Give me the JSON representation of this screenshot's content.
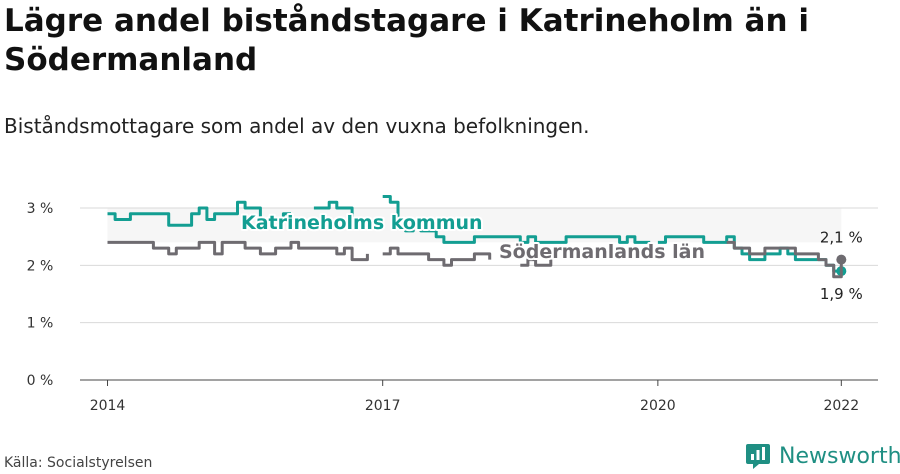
{
  "header": {
    "title": "Lägre andel biståndstagare i Katrineholm än i Södermanland",
    "subtitle": "Biståndsmottagare som andel av den vuxna befolkningen."
  },
  "footer": {
    "source": "Källa: Socialstyrelsen",
    "brand": "Newsworthy"
  },
  "colors": {
    "katrineholm": "#139e92",
    "sodermanland": "#6e6b70",
    "band": "#eeeeee",
    "grid": "#d9d9d9",
    "brand": "#1f8f83"
  },
  "chart_data": {
    "type": "line",
    "x_axis": {
      "range": [
        2013.7,
        2022.4
      ],
      "ticks": [
        2014,
        2017,
        2020,
        2022
      ],
      "tick_labels": [
        "2014",
        "2017",
        "2020",
        "2022"
      ]
    },
    "y_axis": {
      "range": [
        0,
        3
      ],
      "ticks": [
        0,
        1,
        2,
        3
      ],
      "tick_labels": [
        "0 %",
        "1 %",
        "2 %",
        "3 %"
      ]
    },
    "grid": true,
    "series": [
      {
        "name": "Katrineholms kommun",
        "label_position": "above line, 2015",
        "end_label": "1,9 %",
        "segments": [
          [
            [
              2014.0,
              2.9
            ],
            [
              2014.083,
              2.8
            ],
            [
              2014.167,
              2.8
            ],
            [
              2014.25,
              2.9
            ],
            [
              2014.333,
              2.9
            ],
            [
              2014.417,
              2.9
            ],
            [
              2014.5,
              2.9
            ],
            [
              2014.583,
              2.9
            ],
            [
              2014.667,
              2.7
            ],
            [
              2014.75,
              2.7
            ],
            [
              2014.833,
              2.7
            ],
            [
              2014.917,
              2.9
            ],
            [
              2015.0,
              3.0
            ],
            [
              2015.083,
              2.8
            ],
            [
              2015.167,
              2.9
            ],
            [
              2015.25,
              2.9
            ],
            [
              2015.333,
              2.9
            ],
            [
              2015.417,
              3.1
            ],
            [
              2015.5,
              3.0
            ],
            [
              2015.583,
              3.0
            ],
            [
              2015.667,
              2.8
            ],
            [
              2015.75,
              2.8
            ],
            [
              2015.833,
              2.8
            ],
            [
              2015.917,
              2.9
            ],
            [
              2016.0,
              2.9
            ]
          ],
          [
            [
              2016.25,
              3.0
            ],
            [
              2016.333,
              3.0
            ],
            [
              2016.417,
              3.1
            ],
            [
              2016.5,
              3.0
            ],
            [
              2016.583,
              3.0
            ],
            [
              2016.667,
              2.8
            ]
          ],
          [
            [
              2017.0,
              3.2
            ],
            [
              2017.083,
              3.1
            ],
            [
              2017.167,
              2.8
            ],
            [
              2017.25,
              2.6
            ],
            [
              2017.333,
              2.7
            ],
            [
              2017.417,
              2.6
            ],
            [
              2017.5,
              2.6
            ],
            [
              2017.583,
              2.5
            ],
            [
              2017.667,
              2.4
            ],
            [
              2017.75,
              2.4
            ],
            [
              2017.833,
              2.4
            ],
            [
              2017.917,
              2.4
            ],
            [
              2018.0,
              2.5
            ],
            [
              2018.083,
              2.5
            ],
            [
              2018.167,
              2.5
            ],
            [
              2018.25,
              2.5
            ],
            [
              2018.333,
              2.5
            ],
            [
              2018.417,
              2.5
            ],
            [
              2018.5,
              2.4
            ],
            [
              2018.583,
              2.5
            ],
            [
              2018.667,
              2.4
            ],
            [
              2018.75,
              2.4
            ],
            [
              2018.833,
              2.4
            ],
            [
              2018.917,
              2.4
            ],
            [
              2019.0,
              2.5
            ],
            [
              2019.083,
              2.5
            ],
            [
              2019.167,
              2.5
            ],
            [
              2019.25,
              2.5
            ],
            [
              2019.333,
              2.5
            ],
            [
              2019.417,
              2.5
            ],
            [
              2019.5,
              2.5
            ],
            [
              2019.583,
              2.4
            ],
            [
              2019.667,
              2.5
            ],
            [
              2019.75,
              2.4
            ],
            [
              2019.833,
              2.4
            ],
            [
              2019.917,
              2.4
            ]
          ],
          [
            [
              2020.0,
              2.4
            ],
            [
              2020.083,
              2.5
            ],
            [
              2020.167,
              2.5
            ],
            [
              2020.25,
              2.5
            ],
            [
              2020.333,
              2.5
            ],
            [
              2020.417,
              2.5
            ],
            [
              2020.5,
              2.4
            ],
            [
              2020.583,
              2.4
            ],
            [
              2020.667,
              2.4
            ],
            [
              2020.75,
              2.5
            ],
            [
              2020.833,
              2.3
            ],
            [
              2020.917,
              2.2
            ],
            [
              2021.0,
              2.1
            ],
            [
              2021.083,
              2.1
            ],
            [
              2021.167,
              2.2
            ],
            [
              2021.25,
              2.2
            ],
            [
              2021.333,
              2.3
            ],
            [
              2021.417,
              2.2
            ],
            [
              2021.5,
              2.1
            ],
            [
              2021.583,
              2.1
            ],
            [
              2021.667,
              2.1
            ],
            [
              2021.75,
              2.1
            ],
            [
              2021.833,
              2.0
            ],
            [
              2021.917,
              1.9
            ],
            [
              2022.0,
              1.9
            ]
          ]
        ]
      },
      {
        "name": "Södermanlands län",
        "label_position": "above line, 2019",
        "end_label": "2,1 %",
        "segments": [
          [
            [
              2014.0,
              2.4
            ],
            [
              2014.083,
              2.4
            ],
            [
              2014.167,
              2.4
            ],
            [
              2014.25,
              2.4
            ],
            [
              2014.333,
              2.4
            ],
            [
              2014.417,
              2.4
            ],
            [
              2014.5,
              2.3
            ],
            [
              2014.583,
              2.3
            ],
            [
              2014.667,
              2.2
            ],
            [
              2014.75,
              2.3
            ],
            [
              2014.833,
              2.3
            ],
            [
              2014.917,
              2.3
            ],
            [
              2015.0,
              2.4
            ],
            [
              2015.083,
              2.4
            ],
            [
              2015.167,
              2.2
            ],
            [
              2015.25,
              2.4
            ],
            [
              2015.333,
              2.4
            ],
            [
              2015.417,
              2.4
            ],
            [
              2015.5,
              2.3
            ],
            [
              2015.583,
              2.3
            ],
            [
              2015.667,
              2.2
            ],
            [
              2015.75,
              2.2
            ],
            [
              2015.833,
              2.3
            ],
            [
              2015.917,
              2.3
            ],
            [
              2016.0,
              2.4
            ],
            [
              2016.083,
              2.3
            ],
            [
              2016.167,
              2.3
            ],
            [
              2016.25,
              2.3
            ],
            [
              2016.333,
              2.3
            ],
            [
              2016.417,
              2.3
            ],
            [
              2016.5,
              2.2
            ],
            [
              2016.583,
              2.3
            ],
            [
              2016.667,
              2.1
            ],
            [
              2016.75,
              2.1
            ],
            [
              2016.833,
              2.2
            ]
          ],
          [
            [
              2017.0,
              2.2
            ],
            [
              2017.083,
              2.3
            ],
            [
              2017.167,
              2.2
            ],
            [
              2017.25,
              2.2
            ],
            [
              2017.333,
              2.2
            ],
            [
              2017.417,
              2.2
            ],
            [
              2017.5,
              2.1
            ],
            [
              2017.583,
              2.1
            ],
            [
              2017.667,
              2.0
            ],
            [
              2017.75,
              2.1
            ],
            [
              2017.833,
              2.1
            ],
            [
              2017.917,
              2.1
            ],
            [
              2018.0,
              2.2
            ],
            [
              2018.083,
              2.2
            ],
            [
              2018.167,
              2.1
            ]
          ],
          [
            [
              2018.5,
              2.0
            ],
            [
              2018.583,
              2.1
            ],
            [
              2018.667,
              2.0
            ],
            [
              2018.75,
              2.0
            ],
            [
              2018.833,
              2.1
            ]
          ],
          [
            [
              2020.75,
              2.4
            ],
            [
              2020.833,
              2.3
            ],
            [
              2020.917,
              2.3
            ],
            [
              2021.0,
              2.2
            ],
            [
              2021.083,
              2.2
            ],
            [
              2021.167,
              2.3
            ],
            [
              2021.25,
              2.3
            ],
            [
              2021.333,
              2.3
            ],
            [
              2021.417,
              2.3
            ],
            [
              2021.5,
              2.2
            ],
            [
              2021.583,
              2.2
            ],
            [
              2021.667,
              2.2
            ],
            [
              2021.75,
              2.1
            ],
            [
              2021.833,
              2.0
            ],
            [
              2021.917,
              1.8
            ],
            [
              2022.0,
              2.1
            ]
          ]
        ]
      }
    ]
  }
}
